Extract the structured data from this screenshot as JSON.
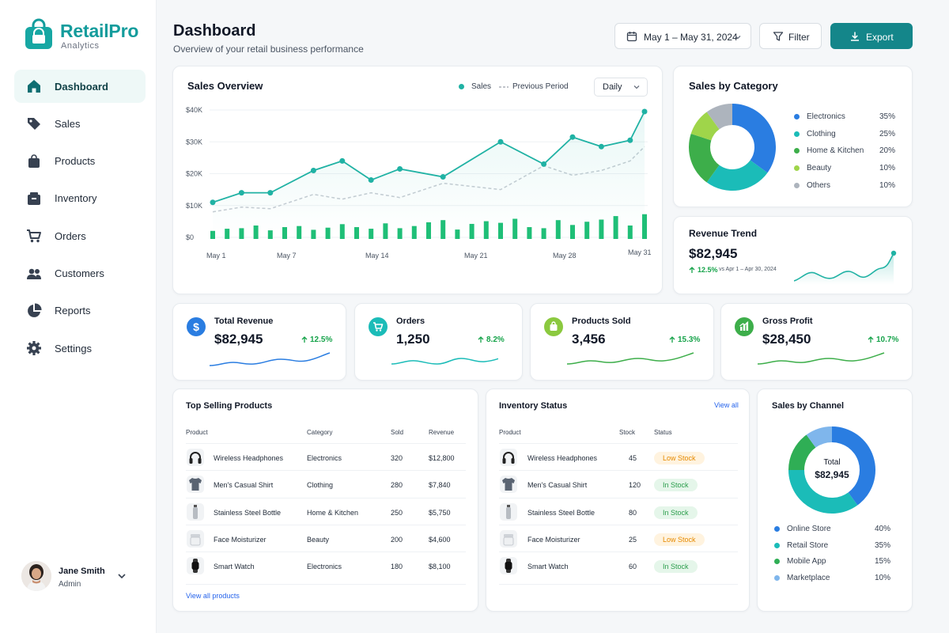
{
  "brand": {
    "name": "RetailPro",
    "sub": "Analytics"
  },
  "nav": [
    {
      "label": "Dashboard",
      "icon": "home-icon",
      "active": true
    },
    {
      "label": "Sales",
      "icon": "tag-icon"
    },
    {
      "label": "Products",
      "icon": "shopping-bag-icon"
    },
    {
      "label": "Inventory",
      "icon": "inventory-box-icon"
    },
    {
      "label": "Orders",
      "icon": "cart-icon"
    },
    {
      "label": "Customers",
      "icon": "users-icon"
    },
    {
      "label": "Reports",
      "icon": "pie-chart-icon"
    },
    {
      "label": "Settings",
      "icon": "gear-icon"
    }
  ],
  "user": {
    "name": "Jane Smith",
    "role": "Admin"
  },
  "header": {
    "title": "Dashboard",
    "subtitle": "Overview of your retail business performance",
    "date_range": "May 1 – May 31, 2024",
    "filter_label": "Filter",
    "export_label": "Export"
  },
  "sales_overview": {
    "title": "Sales Overview",
    "legend_sales": "Sales",
    "legend_prev": "Previous Period",
    "period_select": "Daily"
  },
  "sales_by_category": {
    "title": "Sales by Category",
    "items": [
      {
        "name": "Electronics",
        "pct": "35%",
        "value": 35,
        "color": "#2a7de1"
      },
      {
        "name": "Clothing",
        "pct": "25%",
        "value": 25,
        "color": "#1bbcb8"
      },
      {
        "name": "Home & Kitchen",
        "pct": "20%",
        "value": 20,
        "color": "#3dae4a"
      },
      {
        "name": "Beauty",
        "pct": "10%",
        "value": 10,
        "color": "#9fd54a"
      },
      {
        "name": "Others",
        "pct": "10%",
        "value": 10,
        "color": "#adb4bd"
      }
    ]
  },
  "revenue_trend": {
    "title": "Revenue Trend",
    "value": "$82,945",
    "change": "12.5%",
    "compare": "vs Apr 1 – Apr 30, 2024"
  },
  "kpis": [
    {
      "label": "Total Revenue",
      "value": "$82,945",
      "change": "12.5%",
      "color": "#2a7de1",
      "icon": "dollar-icon"
    },
    {
      "label": "Orders",
      "value": "1,250",
      "change": "8.2%",
      "color": "#1bbcb8",
      "icon": "cart-icon"
    },
    {
      "label": "Products Sold",
      "value": "3,456",
      "change": "15.3%",
      "color": "#8bc93f",
      "icon": "shopping-bag-icon"
    },
    {
      "label": "Gross Profit",
      "value": "$28,450",
      "change": "10.7%",
      "color": "#3dae4a",
      "icon": "bar-chart-icon"
    }
  ],
  "top_products": {
    "title": "Top Selling Products",
    "headers": [
      "Product",
      "Category",
      "Sold",
      "Revenue"
    ],
    "rows": [
      {
        "name": "Wireless Headphones",
        "category": "Electronics",
        "sold": "320",
        "revenue": "$12,800",
        "icon": "headphones-icon"
      },
      {
        "name": "Men's Casual Shirt",
        "category": "Clothing",
        "sold": "280",
        "revenue": "$7,840",
        "icon": "shirt-icon"
      },
      {
        "name": "Stainless Steel Bottle",
        "category": "Home & Kitchen",
        "sold": "250",
        "revenue": "$5,750",
        "icon": "bottle-icon"
      },
      {
        "name": "Face Moisturizer",
        "category": "Beauty",
        "sold": "200",
        "revenue": "$4,600",
        "icon": "jar-icon"
      },
      {
        "name": "Smart Watch",
        "category": "Electronics",
        "sold": "180",
        "revenue": "$8,100",
        "icon": "watch-icon"
      }
    ],
    "view_all": "View all products"
  },
  "inventory": {
    "title": "Inventory Status",
    "view_all": "View all",
    "headers": [
      "Product",
      "Stock",
      "Status"
    ],
    "rows": [
      {
        "name": "Wireless Headphones",
        "stock": "45",
        "status": "Low Stock",
        "icon": "headphones-icon"
      },
      {
        "name": "Men's Casual Shirt",
        "stock": "120",
        "status": "In Stock",
        "icon": "shirt-icon"
      },
      {
        "name": "Stainless Steel Bottle",
        "stock": "80",
        "status": "In Stock",
        "icon": "bottle-icon"
      },
      {
        "name": "Face Moisturizer",
        "stock": "25",
        "status": "Low Stock",
        "icon": "jar-icon"
      },
      {
        "name": "Smart Watch",
        "stock": "60",
        "status": "In Stock",
        "icon": "watch-icon"
      }
    ]
  },
  "sales_by_channel": {
    "title": "Sales by Channel",
    "center_label": "Total",
    "center_value": "$82,945",
    "items": [
      {
        "name": "Online Store",
        "pct": "40%",
        "value": 40,
        "color": "#2a7de1"
      },
      {
        "name": "Retail Store",
        "pct": "35%",
        "value": 35,
        "color": "#1bbcb8"
      },
      {
        "name": "Mobile App",
        "pct": "15%",
        "value": 15,
        "color": "#2fae55"
      },
      {
        "name": "Marketplace",
        "pct": "10%",
        "value": 10,
        "color": "#7fb6ec"
      }
    ]
  },
  "chart_data": {
    "type": "line",
    "title": "Sales Overview",
    "y_ticks": [
      "$0",
      "$10K",
      "$20K",
      "$30K",
      "$40K"
    ],
    "ylim": [
      0,
      40000
    ],
    "x_ticks": [
      "May 1",
      "May 7",
      "May 14",
      "May 21",
      "May 28",
      "May 31"
    ],
    "x_range": [
      1,
      31
    ],
    "legend": "top-right",
    "series": [
      {
        "name": "Sales",
        "style": "solid",
        "color": "#20b2a4",
        "x": [
          1,
          3,
          5,
          8,
          10,
          12,
          14,
          17,
          21,
          24,
          26,
          28,
          30,
          31
        ],
        "y": [
          11000,
          14000,
          14000,
          21000,
          24000,
          18000,
          21500,
          19000,
          30000,
          23000,
          31500,
          28500,
          30500,
          39500
        ]
      },
      {
        "name": "Previous Period",
        "style": "dashed",
        "color": "#c7ccd3",
        "x": [
          1,
          3,
          5,
          8,
          10,
          12,
          14,
          17,
          21,
          24,
          26,
          28,
          30,
          31
        ],
        "y": [
          8000,
          9500,
          9000,
          13500,
          12000,
          14000,
          12500,
          17000,
          15000,
          22500,
          19500,
          21000,
          24000,
          28500
        ]
      },
      {
        "name": "Volume",
        "style": "bars",
        "color": "#1fbf77",
        "x": [
          1,
          2,
          3,
          4,
          5,
          6,
          7,
          8,
          9,
          10,
          11,
          12,
          13,
          14,
          15,
          16,
          17,
          18,
          19,
          20,
          21,
          22,
          23,
          24,
          25,
          26,
          27,
          28,
          29,
          30,
          31
        ],
        "y": [
          30,
          38,
          40,
          50,
          32,
          44,
          48,
          34,
          42,
          55,
          44,
          38,
          58,
          40,
          48,
          62,
          70,
          35,
          56,
          66,
          60,
          75,
          44,
          40,
          70,
          52,
          64,
          72,
          85,
          50,
          92
        ]
      }
    ]
  }
}
